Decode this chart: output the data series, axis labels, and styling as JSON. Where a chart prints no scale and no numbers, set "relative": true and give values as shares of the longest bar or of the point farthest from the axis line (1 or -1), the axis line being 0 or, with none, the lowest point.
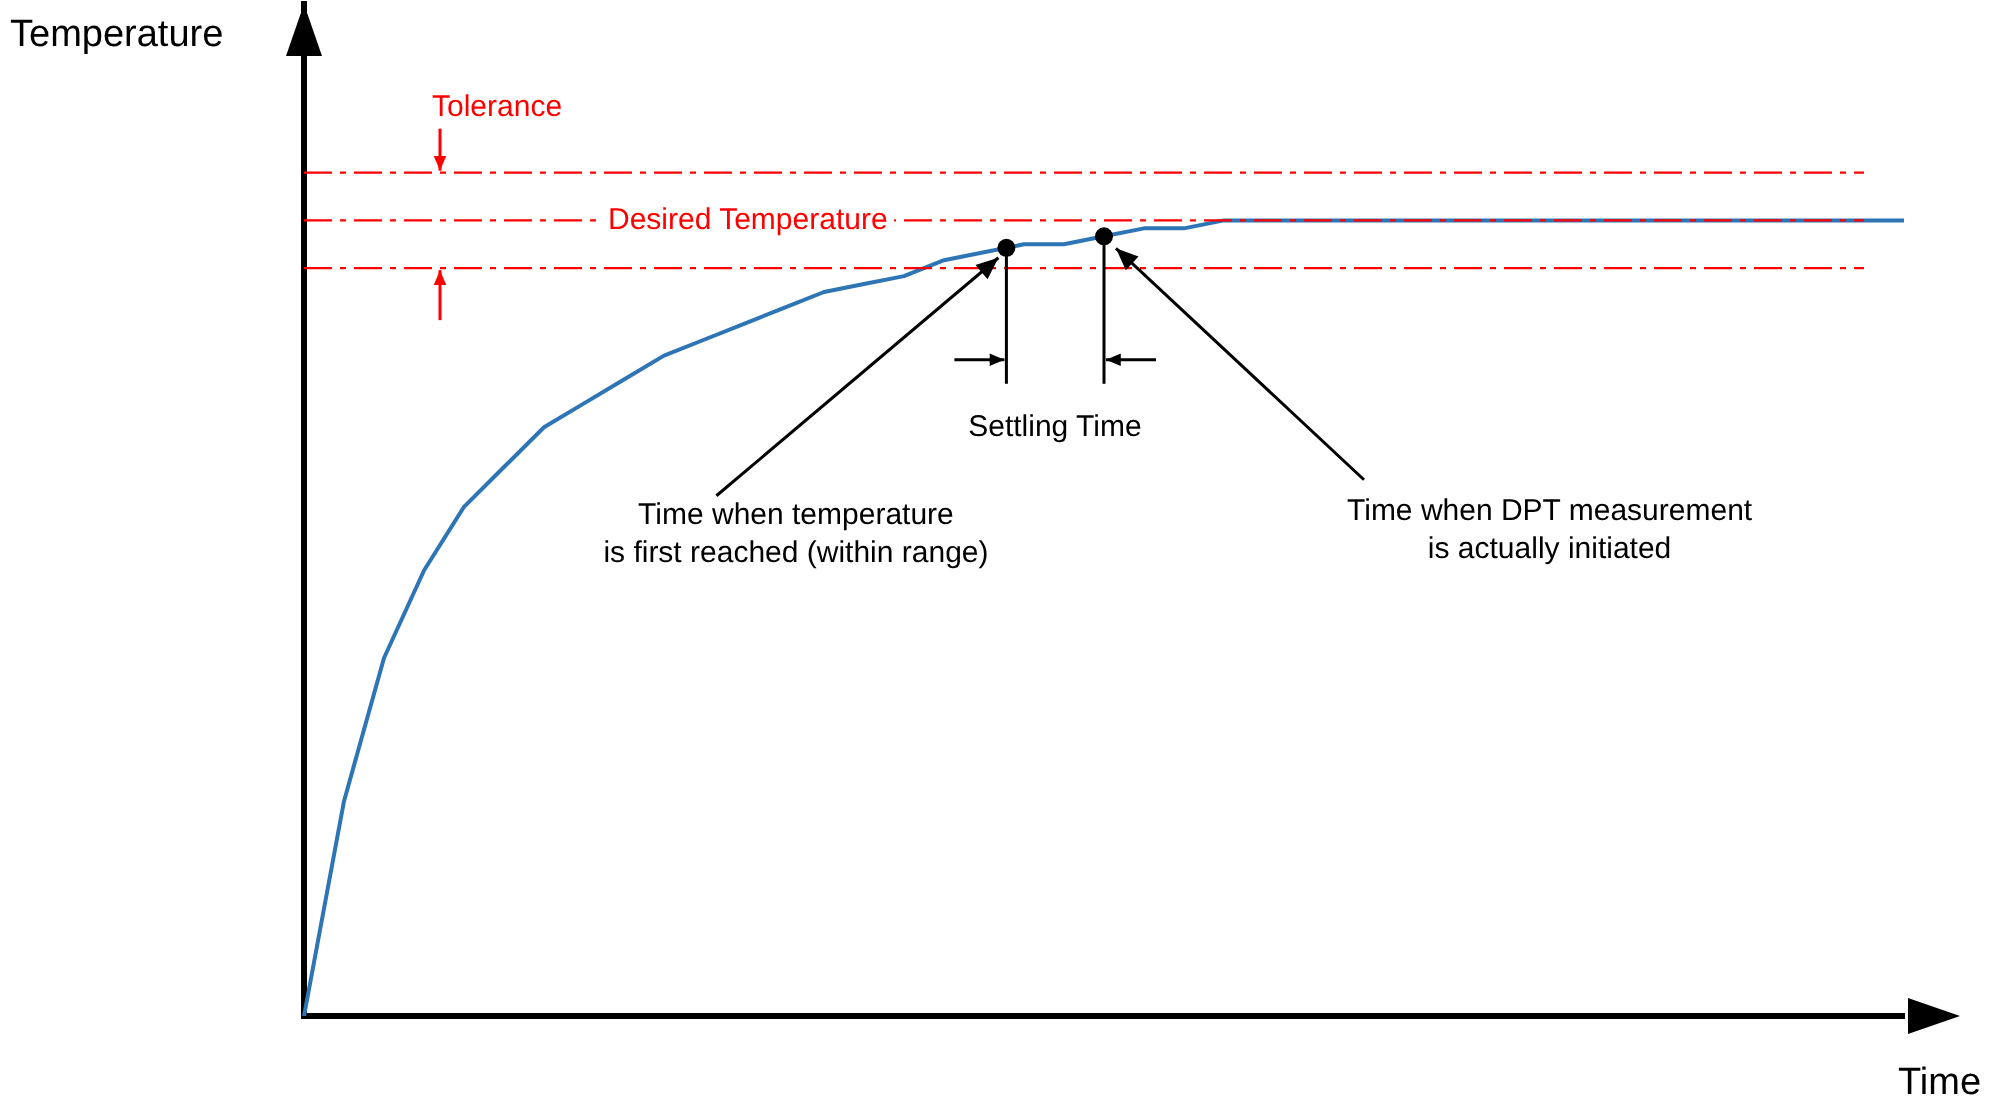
{
  "chart_data": {
    "type": "line",
    "relative": true,
    "xlabel": "Time",
    "ylabel": "Temperature",
    "categories": [
      null,
      null,
      null,
      null,
      null,
      null,
      null,
      null,
      null,
      null,
      null,
      null,
      null,
      null,
      null,
      null,
      null,
      null,
      null,
      null,
      null,
      null,
      null,
      null,
      null,
      null,
      null,
      null,
      null,
      null,
      null,
      null,
      null,
      null,
      null,
      null,
      null,
      null,
      null,
      null,
      null
    ],
    "series": [
      {
        "type": "line",
        "color": "#2e75b6",
        "marker": "none",
        "values": [
          0,
          0.27,
          0.45,
          0.56,
          0.64,
          0.69,
          0.74,
          0.77,
          0.8,
          0.83,
          0.85,
          0.87,
          0.89,
          0.91,
          0.92,
          0.93,
          0.95,
          0.96,
          0.97,
          0.97,
          0.98,
          0.99,
          0.99,
          1,
          1,
          1,
          1,
          1,
          1,
          1,
          1,
          1,
          1,
          1,
          1,
          1,
          1,
          1,
          1,
          1,
          1
        ]
      }
    ],
    "ref_lines": [
      {
        "axis": "y",
        "value": 1.06,
        "label": null,
        "color": "#ff0000",
        "line_style": "dashed"
      },
      {
        "axis": "y",
        "value": 1,
        "label": "Desired Temperature",
        "color": "#ff0000",
        "line_style": "dashed"
      },
      {
        "axis": "y",
        "value": 0.94,
        "label": null,
        "color": "#ff0000",
        "line_style": "dashed"
      }
    ],
    "annotations": [
      "Tolerance",
      "Settling Time",
      "Time when temperature\nis first reached (within range)",
      "Time when DPT measurement\nis actually initiated"
    ]
  }
}
